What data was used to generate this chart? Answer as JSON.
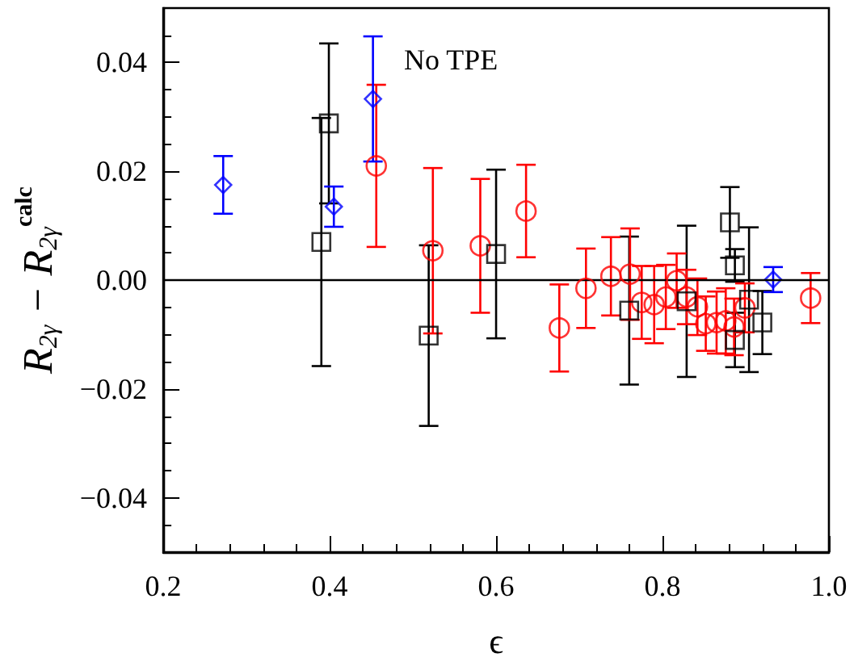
{
  "chart_data": {
    "type": "scatter",
    "xlabel": "ϵ",
    "ylabel": "R$_{2γ}$ − R$_{2γ}$$^{calc}$",
    "xlim": [
      0.2,
      1.0
    ],
    "ylim": [
      -0.05,
      0.05
    ],
    "xticks": [
      {
        "value": 0.2,
        "label": "0.2"
      },
      {
        "value": 0.4,
        "label": "0.4"
      },
      {
        "value": 0.6,
        "label": "0.6"
      },
      {
        "value": 0.8,
        "label": "0.8"
      },
      {
        "value": 1.0,
        "label": "1.0"
      }
    ],
    "yticks": [
      {
        "value": -0.04,
        "label": "−0.04"
      },
      {
        "value": -0.02,
        "label": "−0.02"
      },
      {
        "value": 0,
        "label": "0.00"
      },
      {
        "value": 0.02,
        "label": "0.02"
      },
      {
        "value": 0.04,
        "label": "0.04"
      }
    ],
    "grid": false,
    "annotations": [
      "No TPE"
    ],
    "ref_lines": [
      {
        "axis": "y",
        "value": 0,
        "color": "#000000",
        "line_style": "solid"
      }
    ],
    "series": [
      {
        "color": "#000000",
        "marker": "square",
        "x": [
          0.39,
          0.399,
          0.519,
          0.6,
          0.76,
          0.829,
          0.881,
          0.887,
          0.887,
          0.904,
          0.92
        ],
        "values": [
          0.007,
          0.0288,
          -0.0102,
          0.0048,
          -0.0056,
          -0.0039,
          0.0106,
          0.0027,
          -0.011,
          -0.0036,
          -0.0078
        ],
        "errors": [
          0.0228,
          0.0147,
          0.0166,
          0.0155,
          0.0136,
          0.0139,
          0.0065,
          0.003,
          0.005,
          0.0133,
          0.0058
        ]
      },
      {
        "color": "#ff0000",
        "marker": "circle",
        "x": [
          0.456,
          0.524,
          0.581,
          0.636,
          0.676,
          0.708,
          0.738,
          0.761,
          0.775,
          0.79,
          0.804,
          0.817,
          0.829,
          0.842,
          0.852,
          0.865,
          0.876,
          0.886,
          0.899,
          0.978
        ],
        "values": [
          0.021,
          0.0054,
          0.0063,
          0.0127,
          -0.0088,
          -0.0015,
          0.0007,
          0.0011,
          -0.0041,
          -0.0045,
          -0.0031,
          -0.0001,
          -0.0031,
          -0.0049,
          -0.008,
          -0.0078,
          -0.0075,
          -0.0086,
          -0.0051,
          -0.0033
        ],
        "errors": [
          0.0149,
          0.0152,
          0.0123,
          0.0085,
          0.008,
          0.0073,
          0.0072,
          0.0084,
          0.0067,
          0.0071,
          0.0059,
          0.005,
          0.005,
          0.0052,
          0.005,
          0.0057,
          0.006,
          0.0052,
          0.0045,
          0.0046
        ]
      },
      {
        "color": "#0000ff",
        "marker": "diamond",
        "x": [
          0.272,
          0.405,
          0.452,
          0.933
        ],
        "values": [
          0.0175,
          0.0135,
          0.0333,
          0.0001
        ],
        "errors": [
          0.0053,
          0.0037,
          0.0115,
          0.0023
        ]
      }
    ]
  }
}
